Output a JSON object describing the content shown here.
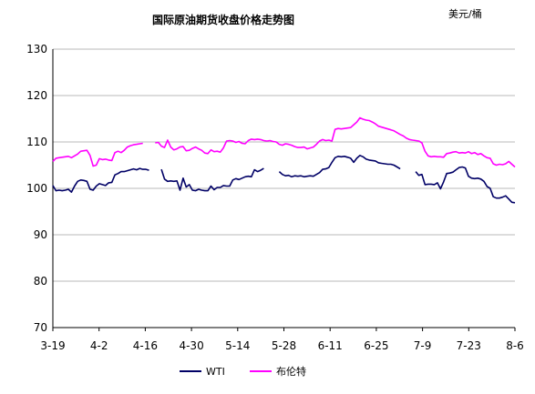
{
  "chart_data": {
    "type": "line",
    "title": "国际原油期货收盘价格走势图",
    "unit": "美元/桶",
    "ylim": [
      70,
      130
    ],
    "yticks": [
      70,
      80,
      90,
      100,
      110,
      120,
      130
    ],
    "x_ticks": [
      "3-19",
      "4-2",
      "4-16",
      "4-30",
      "5-14",
      "5-28",
      "6-11",
      "6-25",
      "7-9",
      "7-23",
      "8-6"
    ],
    "grid": "horizontal",
    "legend_position": "bottom",
    "series": [
      {
        "name": "WTI",
        "color": "#000066",
        "values": [
          100.6,
          99.5,
          99.6,
          99.5,
          99.6,
          99.8,
          99.2,
          100.5,
          101.5,
          101.8,
          101.7,
          101.5,
          99.8,
          99.6,
          100.5,
          101.0,
          100.8,
          100.6,
          101.2,
          101.3,
          102.9,
          103.2,
          103.6,
          103.6,
          103.8,
          104.0,
          104.2,
          104.0,
          104.3,
          104.1,
          104.1,
          103.9,
          null,
          null,
          null,
          104.1,
          102.0,
          101.5,
          101.6,
          101.5,
          101.6,
          99.6,
          102.2,
          100.3,
          100.8,
          99.6,
          99.5,
          99.8,
          99.6,
          99.5,
          99.5,
          100.5,
          99.7,
          100.2,
          100.2,
          100.6,
          100.5,
          100.5,
          101.8,
          102.1,
          101.9,
          102.2,
          102.5,
          102.6,
          102.5,
          104.0,
          103.6,
          103.9,
          104.3,
          null,
          104.5,
          null,
          null,
          103.6,
          103.0,
          102.7,
          102.8,
          102.5,
          102.7,
          102.6,
          102.7,
          102.5,
          102.6,
          102.7,
          102.6,
          103.0,
          103.4,
          104.1,
          104.2,
          104.5,
          105.6,
          106.6,
          106.9,
          106.8,
          106.9,
          106.7,
          106.5,
          105.6,
          106.5,
          107.1,
          106.8,
          106.3,
          106.1,
          106.0,
          105.9,
          105.5,
          105.4,
          105.3,
          105.2,
          105.2,
          105.0,
          104.6,
          104.2,
          null,
          null,
          null,
          null,
          103.6,
          102.8,
          103.0,
          100.8,
          100.9,
          100.9,
          100.8,
          101.2,
          99.9,
          101.4,
          103.2,
          103.3,
          103.5,
          104.0,
          104.5,
          104.6,
          104.4,
          102.6,
          102.2,
          102.1,
          102.2,
          102.0,
          101.5,
          100.4,
          100.0,
          98.2,
          97.9,
          97.9,
          98.1,
          98.4,
          97.7,
          97.0,
          96.9
        ]
      },
      {
        "name": "布伦特",
        "color": "#ff00ff",
        "values": [
          105.8,
          106.5,
          106.6,
          106.7,
          106.8,
          106.9,
          106.6,
          107.0,
          107.4,
          108.0,
          108.1,
          108.2,
          107.1,
          104.8,
          105.0,
          106.4,
          106.2,
          106.3,
          106.1,
          106.0,
          107.7,
          108.0,
          107.7,
          108.2,
          108.9,
          109.2,
          109.4,
          109.5,
          109.6,
          109.7,
          null,
          null,
          null,
          109.8,
          109.9,
          109.1,
          108.8,
          110.4,
          108.9,
          108.3,
          108.5,
          108.9,
          109.0,
          108.1,
          108.2,
          108.6,
          108.9,
          108.5,
          108.2,
          107.6,
          107.5,
          108.3,
          107.9,
          108.0,
          107.8,
          108.7,
          110.2,
          110.3,
          110.2,
          109.9,
          110.1,
          109.7,
          109.6,
          110.3,
          110.6,
          110.5,
          110.6,
          110.5,
          110.3,
          110.2,
          110.3,
          110.1,
          110.0,
          109.5,
          109.3,
          109.6,
          109.5,
          109.3,
          109.0,
          108.8,
          108.8,
          108.9,
          108.5,
          108.7,
          108.9,
          109.5,
          110.2,
          110.5,
          110.3,
          110.4,
          110.2,
          112.7,
          112.9,
          112.8,
          112.9,
          113.0,
          113.1,
          113.7,
          114.3,
          115.2,
          114.9,
          114.7,
          114.6,
          114.3,
          113.9,
          113.4,
          113.2,
          113.0,
          112.8,
          112.6,
          112.4,
          112.0,
          111.6,
          111.3,
          110.8,
          110.5,
          110.4,
          110.3,
          110.2,
          109.8,
          108.0,
          107.0,
          106.8,
          106.9,
          106.8,
          106.8,
          106.7,
          107.5,
          107.6,
          107.8,
          107.9,
          107.6,
          107.7,
          107.6,
          107.9,
          107.5,
          107.7,
          107.3,
          107.5,
          107.0,
          106.6,
          106.5,
          105.3,
          105.0,
          105.2,
          105.1,
          105.3,
          105.8,
          105.2,
          104.6
        ]
      }
    ]
  }
}
